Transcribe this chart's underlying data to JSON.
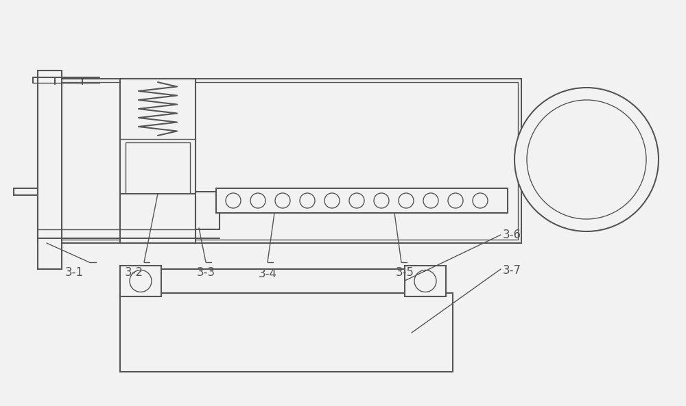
{
  "bg_color": "#f2f2f2",
  "line_color": "#555555",
  "lw_main": 1.5,
  "lw_thin": 1.0,
  "fig_width": 10.0,
  "fig_height": 5.93,
  "dpi": 100
}
